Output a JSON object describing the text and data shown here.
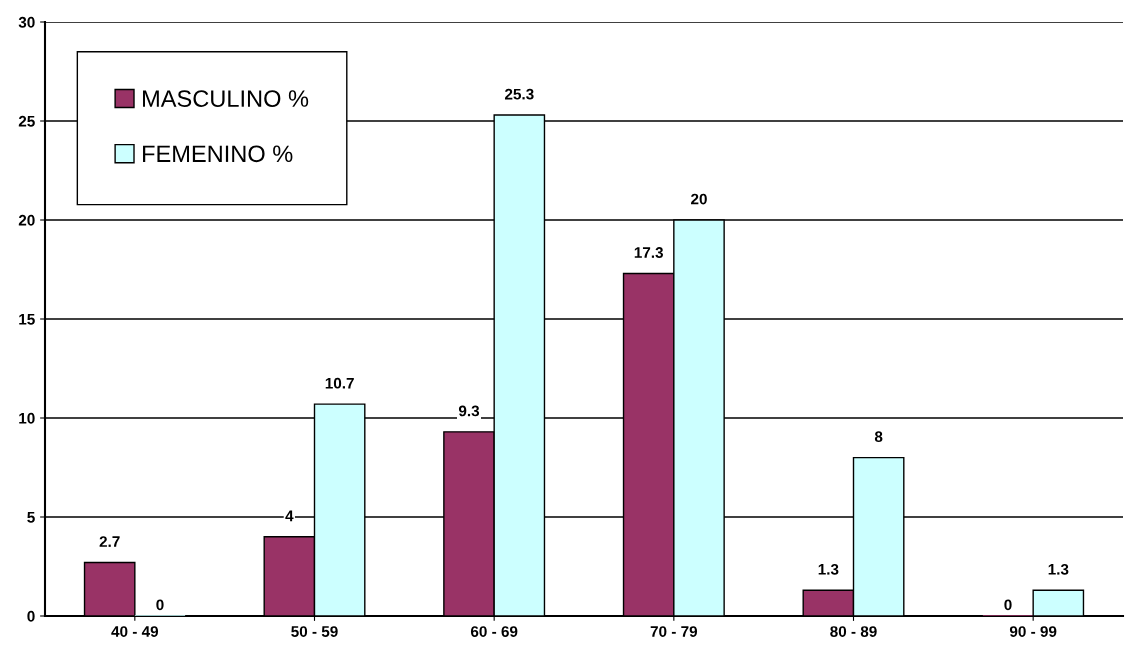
{
  "chart_data": {
    "type": "bar",
    "categories": [
      "40 - 49",
      "50 - 59",
      "60 - 69",
      "70 - 79",
      "80 - 89",
      "90 - 99"
    ],
    "series": [
      {
        "name": "MASCULINO %",
        "color": "#993366",
        "values": [
          2.7,
          4,
          9.3,
          17.3,
          1.3,
          0
        ]
      },
      {
        "name": "FEMENINO %",
        "color": "#ccffff",
        "values": [
          0,
          10.7,
          25.3,
          20,
          8,
          1.3
        ]
      }
    ],
    "ylim": [
      0,
      30
    ],
    "yticks": [
      0,
      5,
      10,
      15,
      20,
      25,
      30
    ],
    "grid": "y",
    "legend": "top left",
    "data_labels": true
  }
}
